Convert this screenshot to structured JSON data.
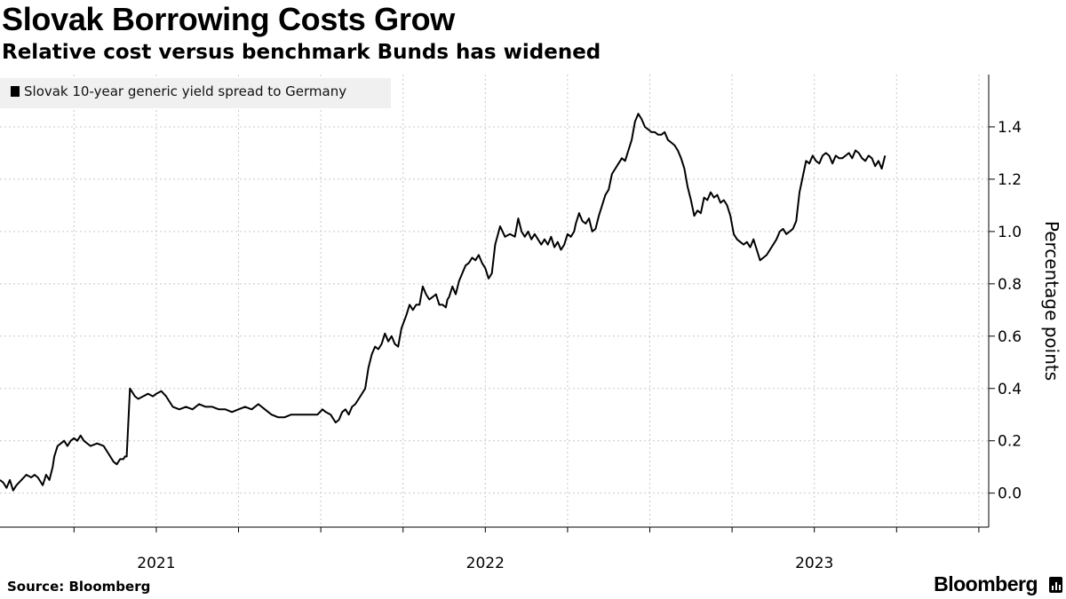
{
  "header": {
    "title": "Slovak Borrowing Costs Grow",
    "subtitle": "Relative cost versus benchmark Bunds has widened"
  },
  "footer": {
    "source": "Source: Bloomberg",
    "brand": "Bloomberg"
  },
  "colors": {
    "line": "#000000",
    "grid": "#c8c8c8",
    "legend_bg": "#f0f0f0"
  },
  "chart_data": {
    "type": "line",
    "title": "Slovak Borrowing Costs Grow",
    "subtitle": "Relative cost versus benchmark Bunds has widened",
    "xlabel": "",
    "ylabel": "Percentage points",
    "xlim": [
      2020.525,
      2023.53
    ],
    "ylim": [
      -0.13,
      1.6
    ],
    "yticks": [
      0.0,
      0.2,
      0.4,
      0.6,
      0.8,
      1.0,
      1.2,
      1.4
    ],
    "ytick_labels": [
      "0.0",
      "0.2",
      "0.4",
      "0.6",
      "0.8",
      "1.0",
      "1.2",
      "1.4"
    ],
    "xtick_labels": [
      {
        "label": "2021",
        "x": 2021.0
      },
      {
        "label": "2022",
        "x": 2022.0
      },
      {
        "label": "2023",
        "x": 2023.0
      }
    ],
    "x_minor_ticks": [
      2020.75,
      2021.25,
      2021.5,
      2021.75,
      2022.25,
      2022.5,
      2022.75,
      2023.25,
      2023.5
    ],
    "grid": true,
    "legend_position": "top-left",
    "series": [
      {
        "name": "Slovak 10-year generic yield spread to Germany",
        "x": [
          2020.525,
          2020.535,
          2020.545,
          2020.555,
          2020.565,
          2020.575,
          2020.59,
          2020.605,
          2020.62,
          2020.63,
          2020.64,
          2020.65,
          2020.655,
          2020.665,
          2020.675,
          2020.685,
          2020.69,
          2020.7,
          2020.71,
          2020.72,
          2020.73,
          2020.74,
          2020.75,
          2020.76,
          2020.77,
          2020.78,
          2020.8,
          2020.82,
          2020.84,
          2020.85,
          2020.86,
          2020.87,
          2020.88,
          2020.89,
          2020.9,
          2020.905,
          2020.91,
          2020.92,
          2020.935,
          2020.945,
          2020.96,
          2020.975,
          2020.99,
          2021.0,
          2021.015,
          2021.03,
          2021.05,
          2021.07,
          2021.09,
          2021.11,
          2021.13,
          2021.15,
          2021.17,
          2021.19,
          2021.21,
          2021.23,
          2021.25,
          2021.27,
          2021.29,
          2021.31,
          2021.33,
          2021.35,
          2021.37,
          2021.39,
          2021.41,
          2021.43,
          2021.45,
          2021.465,
          2021.475,
          2021.49,
          2021.505,
          2021.515,
          2021.53,
          2021.545,
          2021.555,
          2021.565,
          2021.575,
          2021.585,
          2021.595,
          2021.605,
          2021.62,
          2021.635,
          2021.645,
          2021.655,
          2021.665,
          2021.675,
          2021.685,
          2021.695,
          2021.705,
          2021.715,
          2021.725,
          2021.735,
          2021.745,
          2021.76,
          2021.77,
          2021.78,
          2021.79,
          2021.8,
          2021.81,
          2021.82,
          2021.83,
          2021.84,
          2021.85,
          2021.86,
          2021.87,
          2021.88,
          2021.885,
          2021.89,
          2021.9,
          2021.91,
          2021.92,
          2021.93,
          2021.94,
          2021.95,
          2021.96,
          2021.97,
          2021.98,
          2021.99,
          2022.0,
          2022.01,
          2022.02,
          2022.03,
          2022.045,
          2022.06,
          2022.075,
          2022.09,
          2022.1,
          2022.11,
          2022.12,
          2022.13,
          2022.14,
          2022.15,
          2022.16,
          2022.17,
          2022.18,
          2022.19,
          2022.2,
          2022.21,
          2022.22,
          2022.23,
          2022.24,
          2022.25,
          2022.26,
          2022.27,
          2022.275,
          2022.285,
          2022.295,
          2022.305,
          2022.315,
          2022.325,
          2022.335,
          2022.345,
          2022.355,
          2022.365,
          2022.375,
          2022.385,
          2022.395,
          2022.405,
          2022.415,
          2022.425,
          2022.435,
          2022.445,
          2022.455,
          2022.465,
          2022.475,
          2022.485,
          2022.495,
          2022.505,
          2022.515,
          2022.525,
          2022.535,
          2022.545,
          2022.555,
          2022.565,
          2022.575,
          2022.585,
          2022.595,
          2022.605,
          2022.615,
          2022.625,
          2022.635,
          2022.645,
          2022.655,
          2022.665,
          2022.675,
          2022.685,
          2022.695,
          2022.705,
          2022.715,
          2022.725,
          2022.735,
          2022.745,
          2022.755,
          2022.765,
          2022.775,
          2022.785,
          2022.795,
          2022.805,
          2022.815,
          2022.825,
          2022.835,
          2022.845,
          2022.855,
          2022.865,
          2022.875,
          2022.885,
          2022.895,
          2022.905,
          2022.915,
          2022.925,
          2022.935,
          2022.945,
          2022.955,
          2022.965,
          2022.975,
          2022.985,
          2022.995,
          2023.005,
          2023.015,
          2023.025,
          2023.035,
          2023.045,
          2023.055,
          2023.065,
          2023.075,
          2023.085,
          2023.095,
          2023.105,
          2023.115,
          2023.125,
          2023.135,
          2023.145,
          2023.155,
          2023.165,
          2023.175,
          2023.185,
          2023.195,
          2023.205,
          2023.215
        ],
        "values": [
          0.05,
          0.04,
          0.02,
          0.05,
          0.01,
          0.03,
          0.05,
          0.07,
          0.06,
          0.07,
          0.06,
          0.04,
          0.03,
          0.07,
          0.05,
          0.1,
          0.14,
          0.18,
          0.19,
          0.2,
          0.18,
          0.2,
          0.21,
          0.2,
          0.22,
          0.2,
          0.18,
          0.19,
          0.18,
          0.16,
          0.14,
          0.12,
          0.11,
          0.13,
          0.13,
          0.14,
          0.14,
          0.4,
          0.37,
          0.36,
          0.37,
          0.38,
          0.37,
          0.38,
          0.39,
          0.37,
          0.33,
          0.32,
          0.33,
          0.32,
          0.34,
          0.33,
          0.33,
          0.32,
          0.32,
          0.31,
          0.32,
          0.33,
          0.32,
          0.34,
          0.32,
          0.3,
          0.29,
          0.29,
          0.3,
          0.3,
          0.3,
          0.3,
          0.3,
          0.3,
          0.32,
          0.31,
          0.3,
          0.27,
          0.28,
          0.31,
          0.32,
          0.3,
          0.33,
          0.34,
          0.37,
          0.4,
          0.48,
          0.53,
          0.56,
          0.55,
          0.57,
          0.61,
          0.58,
          0.6,
          0.57,
          0.56,
          0.63,
          0.68,
          0.72,
          0.7,
          0.72,
          0.72,
          0.79,
          0.76,
          0.74,
          0.75,
          0.76,
          0.72,
          0.72,
          0.71,
          0.74,
          0.75,
          0.79,
          0.76,
          0.81,
          0.84,
          0.87,
          0.88,
          0.9,
          0.89,
          0.91,
          0.88,
          0.86,
          0.82,
          0.84,
          0.95,
          1.02,
          0.98,
          0.99,
          0.98,
          1.05,
          1.0,
          0.98,
          1.0,
          0.97,
          0.99,
          0.97,
          0.95,
          0.97,
          0.95,
          0.98,
          0.94,
          0.96,
          0.93,
          0.95,
          0.99,
          0.98,
          1.0,
          1.03,
          1.07,
          1.04,
          1.03,
          1.05,
          1.0,
          1.01,
          1.06,
          1.1,
          1.14,
          1.16,
          1.22,
          1.24,
          1.26,
          1.28,
          1.27,
          1.31,
          1.35,
          1.42,
          1.45,
          1.43,
          1.4,
          1.39,
          1.38,
          1.38,
          1.37,
          1.37,
          1.38,
          1.35,
          1.34,
          1.33,
          1.31,
          1.28,
          1.24,
          1.17,
          1.12,
          1.06,
          1.08,
          1.07,
          1.13,
          1.12,
          1.15,
          1.13,
          1.14,
          1.11,
          1.12,
          1.1,
          1.06,
          0.99,
          0.97,
          0.96,
          0.95,
          0.96,
          0.94,
          0.97,
          0.93,
          0.89,
          0.9,
          0.91,
          0.93,
          0.95,
          0.97,
          1.0,
          1.01,
          0.99,
          1.0,
          1.01,
          1.04,
          1.15,
          1.21,
          1.27,
          1.26,
          1.29,
          1.27,
          1.26,
          1.29,
          1.3,
          1.29,
          1.26,
          1.29,
          1.28,
          1.28,
          1.29,
          1.3,
          1.28,
          1.31,
          1.3,
          1.28,
          1.27,
          1.29,
          1.28,
          1.25,
          1.27,
          1.24,
          1.29
        ]
      }
    ]
  }
}
